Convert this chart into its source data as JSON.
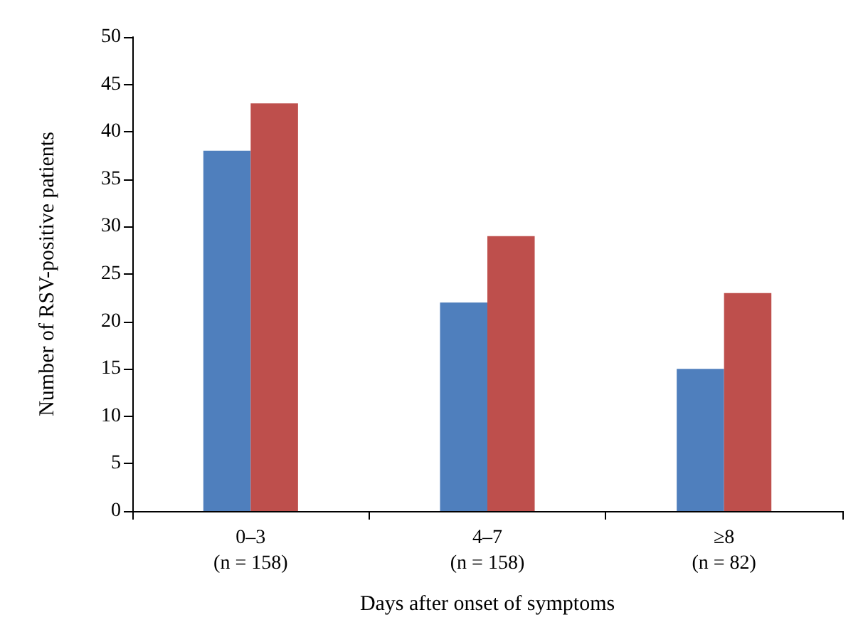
{
  "chart_data": {
    "type": "bar",
    "xlabel": "Days after onset of symptoms",
    "ylabel": "Number of RSV-positive patients",
    "categories": [
      "0–3\n(n = 158)",
      "4–7\n(n = 158)",
      "≥8\n(n = 82)"
    ],
    "series": [
      {
        "color": "#4f7fbd",
        "values": [
          38,
          22,
          15
        ]
      },
      {
        "color": "#be4f4c",
        "values": [
          43,
          29,
          23
        ]
      }
    ],
    "ylim": [
      0,
      50
    ],
    "yticks": [
      0,
      5,
      10,
      15,
      20,
      25,
      30,
      35,
      40,
      45,
      50
    ],
    "grid": false
  }
}
